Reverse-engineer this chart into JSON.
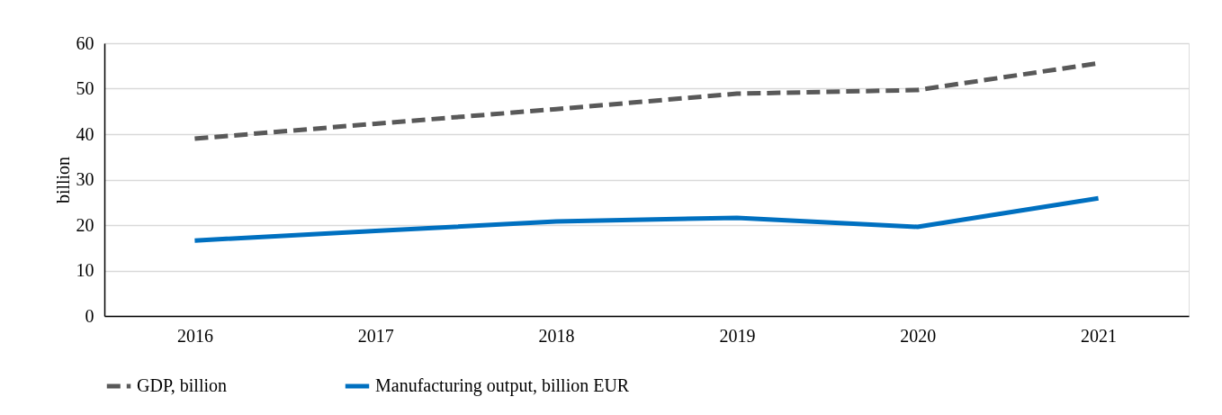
{
  "chart_data": {
    "type": "line",
    "ylabel": "billion",
    "categories": [
      "2016",
      "2017",
      "2018",
      "2019",
      "2020",
      "2021"
    ],
    "series": [
      {
        "name": "GDP, billion",
        "color": "#595959",
        "line_style": "dashed",
        "values": [
          39.0,
          42.3,
          45.5,
          48.9,
          49.7,
          55.6
        ]
      },
      {
        "name": "Manufacturing output, billion EUR",
        "color": "#0070c0",
        "line_style": "solid",
        "values": [
          16.6,
          18.7,
          20.8,
          21.6,
          19.6,
          25.9
        ]
      }
    ],
    "ylim": [
      0,
      60
    ],
    "yticks": [
      0,
      10,
      20,
      30,
      40,
      50,
      60
    ],
    "grid": "y",
    "legend": "bottom"
  }
}
